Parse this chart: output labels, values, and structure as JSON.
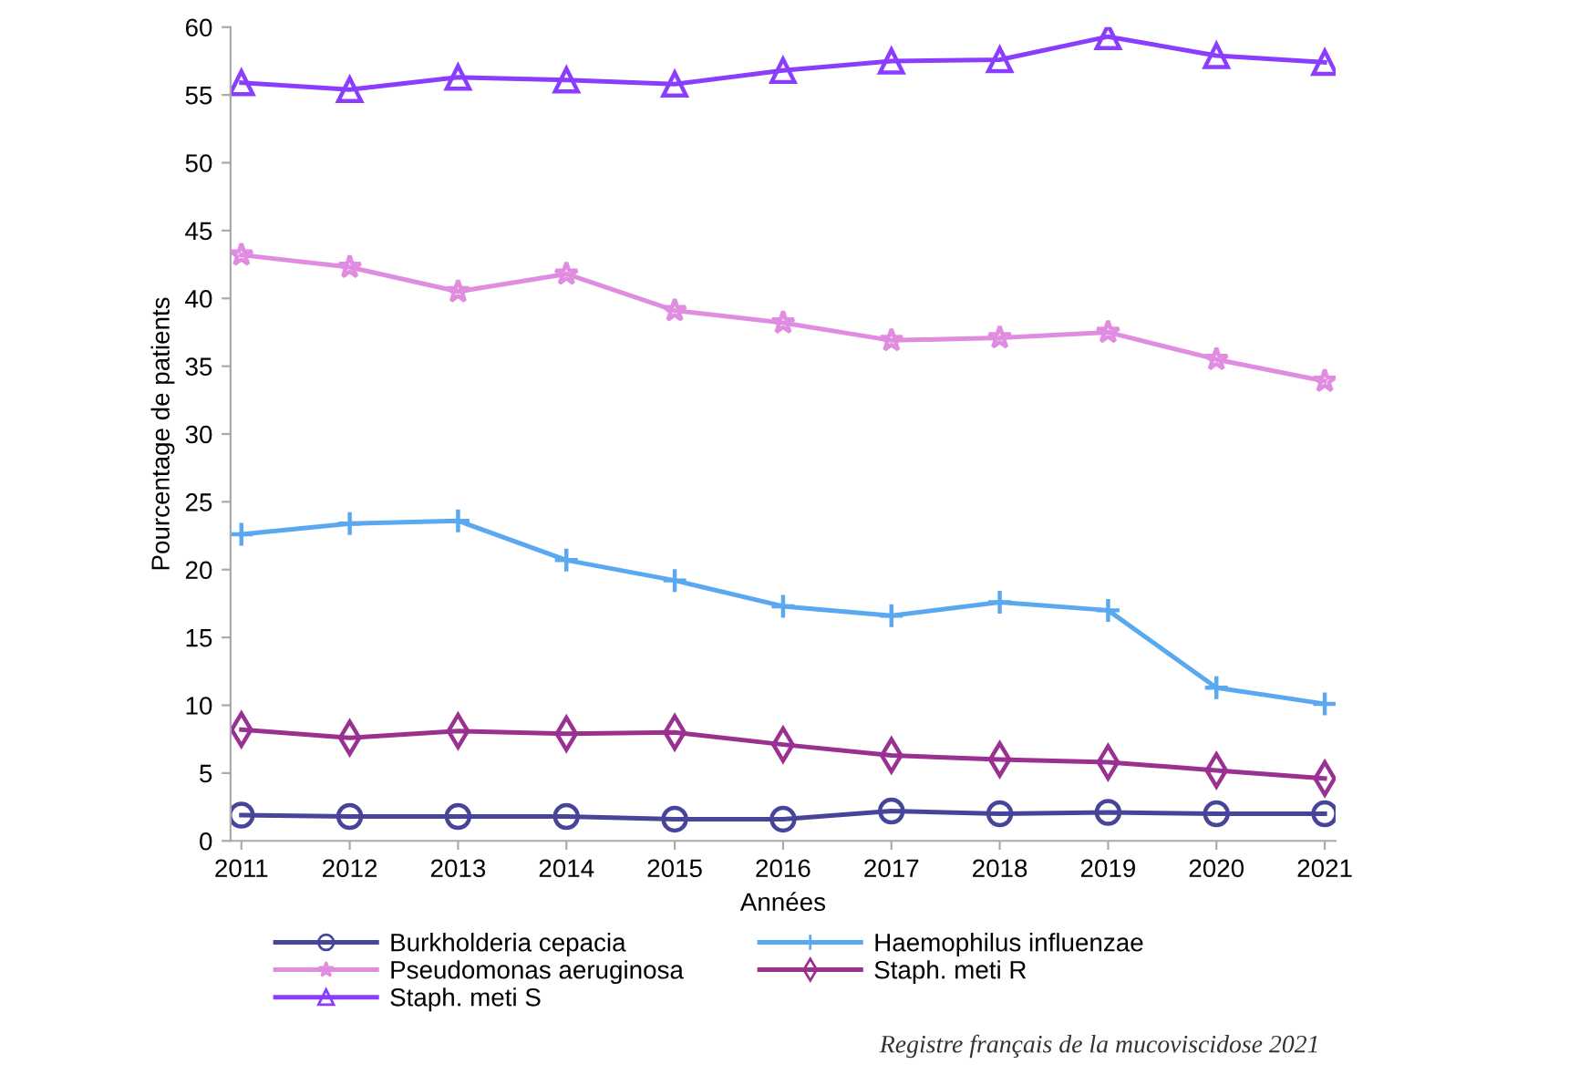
{
  "chart_data": {
    "type": "line",
    "xlabel": "Années",
    "ylabel": "Pourcentage de patients",
    "x": [
      2011,
      2012,
      2013,
      2014,
      2015,
      2016,
      2017,
      2018,
      2019,
      2020,
      2021
    ],
    "xlim": [
      2010.9,
      2021.1
    ],
    "xticks": [
      2011,
      2012,
      2013,
      2014,
      2015,
      2016,
      2017,
      2018,
      2019,
      2020,
      2021
    ],
    "ylim": [
      0,
      60
    ],
    "yticks": [
      0,
      5,
      10,
      15,
      20,
      25,
      30,
      35,
      40,
      45,
      50,
      55,
      60
    ],
    "grid": false,
    "legend": "bottom",
    "series": [
      {
        "name": "Burkholderia cepacia",
        "color": "#47459a",
        "marker": "circle",
        "values": [
          1.9,
          1.8,
          1.8,
          1.8,
          1.6,
          1.6,
          2.2,
          2.0,
          2.1,
          2.0,
          2.0
        ]
      },
      {
        "name": "Haemophilus influenzae",
        "color": "#5aa8f0",
        "marker": "cross",
        "values": [
          22.6,
          23.4,
          23.6,
          20.7,
          19.2,
          17.3,
          16.6,
          17.6,
          17.0,
          11.3,
          10.1
        ]
      },
      {
        "name": "Pseudomonas aeruginosa",
        "color": "#e08ce0",
        "marker": "star",
        "values": [
          43.2,
          42.3,
          40.5,
          41.8,
          39.1,
          38.2,
          36.9,
          37.1,
          37.5,
          35.5,
          33.9
        ]
      },
      {
        "name": "Staph. meti R",
        "color": "#9a3090",
        "marker": "diamond",
        "values": [
          8.2,
          7.6,
          8.1,
          7.9,
          8.0,
          7.1,
          6.3,
          6.0,
          5.8,
          5.2,
          4.6
        ]
      },
      {
        "name": "Staph. meti S",
        "color": "#8a3cff",
        "marker": "triangle",
        "values": [
          55.9,
          55.4,
          56.3,
          56.1,
          55.8,
          56.8,
          57.5,
          57.6,
          59.3,
          57.9,
          57.4
        ]
      }
    ],
    "annotations": [
      "Registre français de la mucoviscidose 2021"
    ]
  }
}
